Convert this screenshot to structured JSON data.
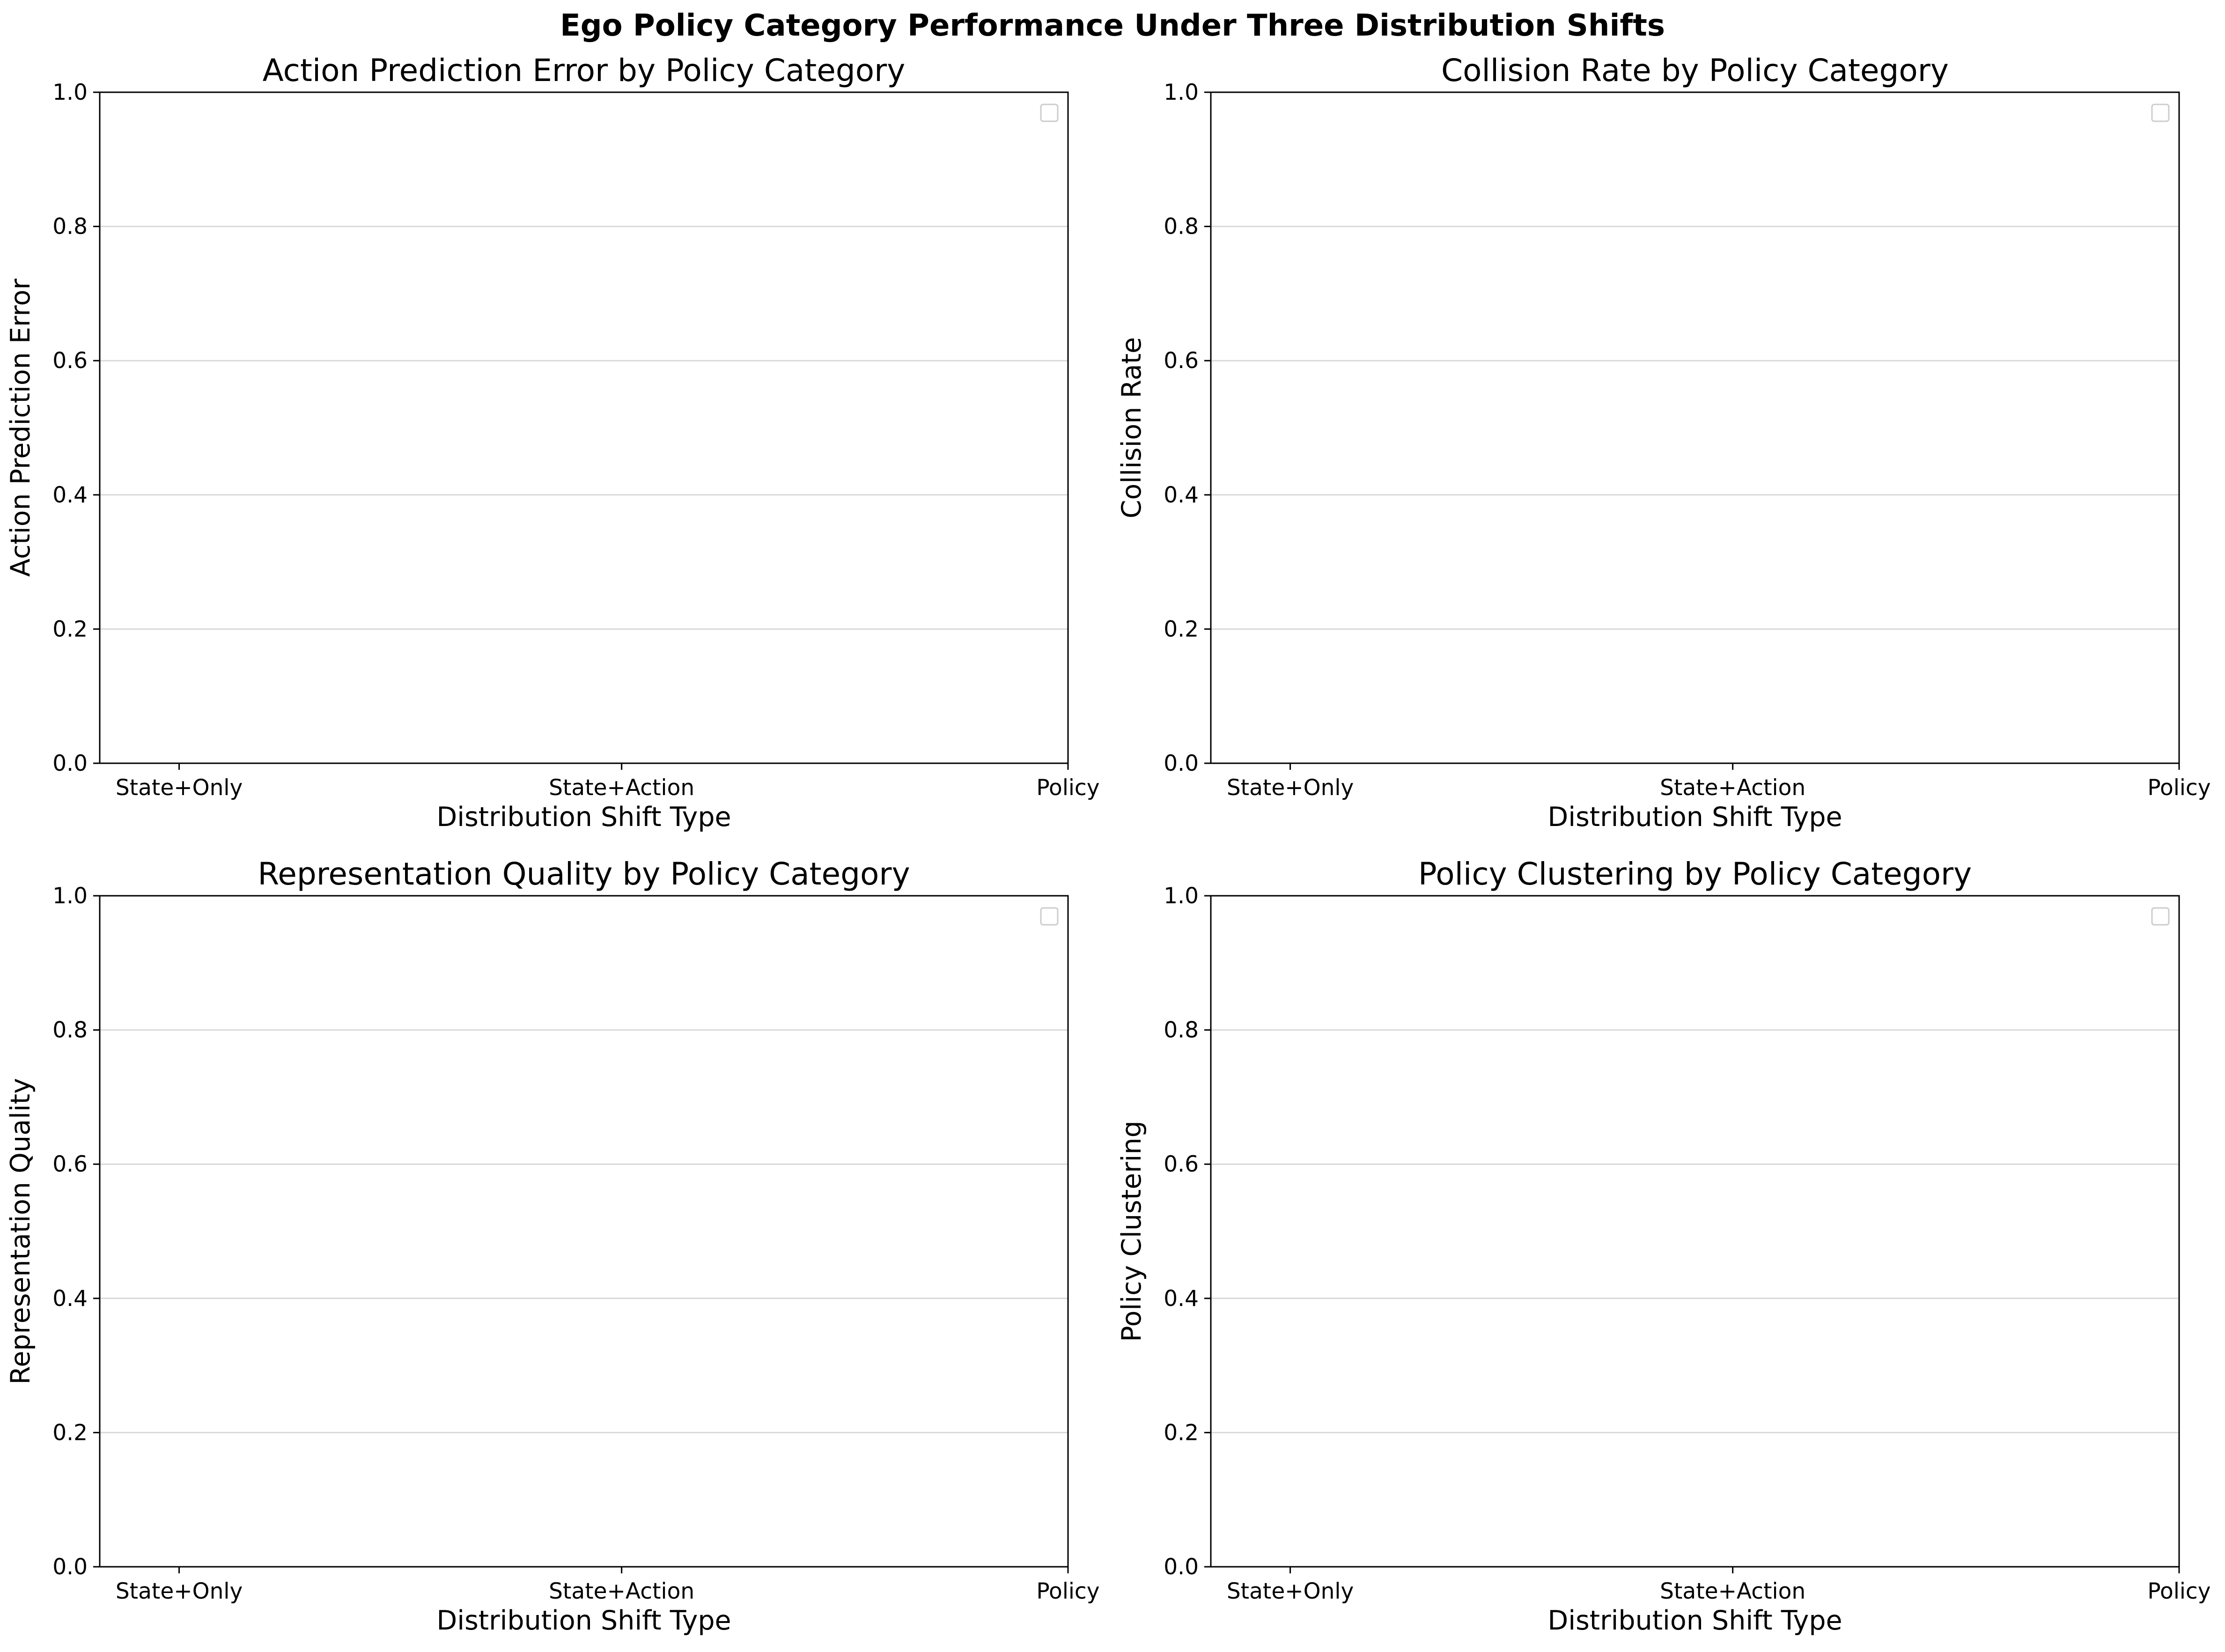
{
  "figure": {
    "title": "Ego Policy Category Performance Under Three Distribution Shifts"
  },
  "chart_data": [
    {
      "type": "bar",
      "title": "Action Prediction Error by Policy Category",
      "xlabel": "Distribution Shift Type",
      "ylabel": "Action Prediction Error",
      "categories": [
        "State+Only",
        "State+Action",
        "Policy"
      ],
      "series": [],
      "ylim": [
        0,
        1
      ],
      "yticks": [
        "0.0",
        "0.2",
        "0.4",
        "0.6",
        "0.8",
        "1.0"
      ],
      "grid": true,
      "legend_placement": "upper-right",
      "legend_entries": []
    },
    {
      "type": "bar",
      "title": "Collision Rate by Policy Category",
      "xlabel": "Distribution Shift Type",
      "ylabel": "Collision Rate",
      "categories": [
        "State+Only",
        "State+Action",
        "Policy"
      ],
      "series": [],
      "ylim": [
        0,
        1
      ],
      "yticks": [
        "0.0",
        "0.2",
        "0.4",
        "0.6",
        "0.8",
        "1.0"
      ],
      "grid": true,
      "legend_placement": "upper-right",
      "legend_entries": []
    },
    {
      "type": "bar",
      "title": "Representation Quality by Policy Category",
      "xlabel": "Distribution Shift Type",
      "ylabel": "Representation Quality",
      "categories": [
        "State+Only",
        "State+Action",
        "Policy"
      ],
      "series": [],
      "ylim": [
        0,
        1
      ],
      "yticks": [
        "0.0",
        "0.2",
        "0.4",
        "0.6",
        "0.8",
        "1.0"
      ],
      "grid": true,
      "legend_placement": "upper-right",
      "legend_entries": []
    },
    {
      "type": "bar",
      "title": "Policy Clustering by Policy Category",
      "xlabel": "Distribution Shift Type",
      "ylabel": "Policy Clustering",
      "categories": [
        "State+Only",
        "State+Action",
        "Policy"
      ],
      "series": [],
      "ylim": [
        0,
        1
      ],
      "yticks": [
        "0.0",
        "0.2",
        "0.4",
        "0.6",
        "0.8",
        "1.0"
      ],
      "grid": true,
      "legend_placement": "upper-right",
      "legend_entries": []
    }
  ]
}
